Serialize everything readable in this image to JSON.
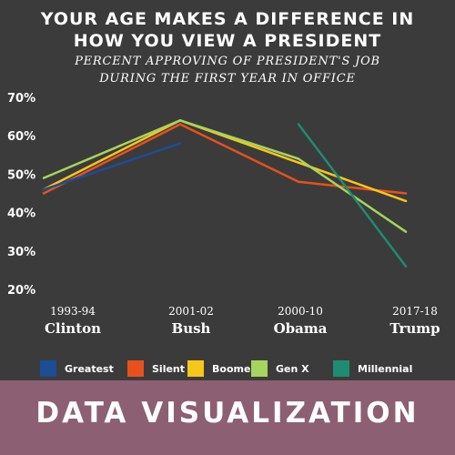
{
  "header": {
    "title_line1": "YOUR AGE MAKES A DIFFERENCE IN",
    "title_line2": "HOW YOU VIEW A PRESIDENT",
    "subtitle_line1": "PERCENT APPROVING OF PRESIDENT'S JOB",
    "subtitle_line2": "DURING THE FIRST YEAR IN OFFICE"
  },
  "banner": {
    "label": "DATA VISUALIZATION"
  },
  "colors": {
    "background": "#3b3b3b",
    "banner": "#8c5f72",
    "text": "#ffffff"
  },
  "chart_data": {
    "type": "line",
    "categories": [
      {
        "years": "1993-94",
        "president": "Clinton"
      },
      {
        "years": "2001-02",
        "president": "Bush"
      },
      {
        "years": "2000-10",
        "president": "Obama"
      },
      {
        "years": "2017-18",
        "president": "Trump"
      }
    ],
    "y_ticks": [
      "70%",
      "60%",
      "50%",
      "40%",
      "30%",
      "20%"
    ],
    "ylim": [
      20,
      70
    ],
    "grid": false,
    "legend_placement": "bottom",
    "series": [
      {
        "name": "Greatest",
        "color": "#1c4d96",
        "values": [
          46,
          58,
          null,
          null
        ]
      },
      {
        "name": "Silent",
        "color": "#e8501c",
        "values": [
          45,
          63,
          48,
          45
        ]
      },
      {
        "name": "Boomer",
        "color": "#f7c61a",
        "values": [
          46,
          64,
          53,
          43
        ]
      },
      {
        "name": "Gen X",
        "color": "#a6d45e",
        "values": [
          49,
          64,
          54,
          35
        ]
      },
      {
        "name": "Millennial",
        "color": "#1e8c70",
        "values": [
          null,
          null,
          63,
          26
        ]
      }
    ]
  }
}
